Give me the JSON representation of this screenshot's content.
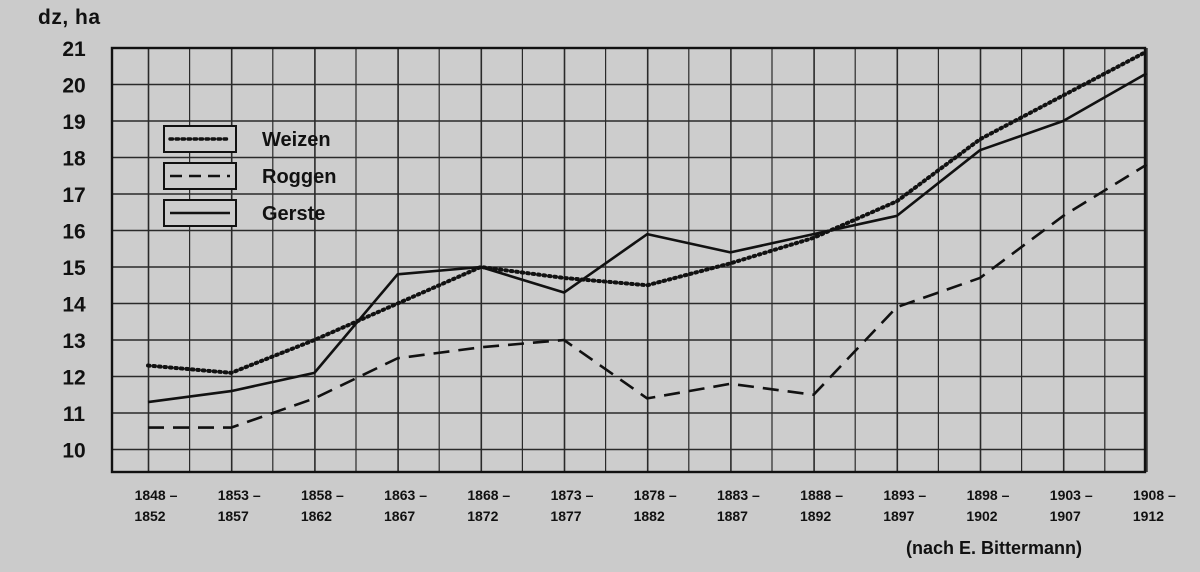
{
  "chart_data": {
    "type": "line",
    "y_unit_label": "dz, ha",
    "x": [
      "1848 – 1852",
      "1853 – 1857",
      "1858 – 1862",
      "1863 – 1867",
      "1868 – 1872",
      "1873 – 1877",
      "1878 – 1882",
      "1883 – 1887",
      "1888 – 1892",
      "1893 – 1897",
      "1898 – 1902",
      "1903 – 1907",
      "1908 – 1912"
    ],
    "x_ticks": [
      {
        "start": "1848 –",
        "end": "1852"
      },
      {
        "start": "1853 –",
        "end": "1857"
      },
      {
        "start": "1858 –",
        "end": "1862"
      },
      {
        "start": "1863 –",
        "end": "1867"
      },
      {
        "start": "1868 –",
        "end": "1872"
      },
      {
        "start": "1873 –",
        "end": "1877"
      },
      {
        "start": "1878 –",
        "end": "1882"
      },
      {
        "start": "1883 –",
        "end": "1887"
      },
      {
        "start": "1888 –",
        "end": "1892"
      },
      {
        "start": "1893 –",
        "end": "1897"
      },
      {
        "start": "1898 –",
        "end": "1902"
      },
      {
        "start": "1903 –",
        "end": "1907"
      },
      {
        "start": "1908 –",
        "end": "1912"
      }
    ],
    "y_ticks": [
      10,
      11,
      12,
      13,
      14,
      15,
      16,
      17,
      18,
      19,
      20,
      21
    ],
    "ylim": [
      9.3,
      21
    ],
    "grid": true,
    "legend_position": "top-left",
    "series": [
      {
        "name": "Weizen",
        "style": "dotted",
        "values": [
          12.3,
          12.1,
          13.0,
          14.0,
          15.0,
          14.7,
          14.5,
          15.1,
          15.8,
          16.8,
          18.5,
          19.7,
          20.9
        ]
      },
      {
        "name": "Roggen",
        "style": "dashed",
        "values": [
          10.6,
          10.6,
          11.4,
          12.5,
          12.8,
          13.0,
          11.4,
          11.8,
          11.5,
          13.9,
          14.7,
          16.4,
          17.8
        ]
      },
      {
        "name": "Gerste",
        "style": "solid",
        "values": [
          11.3,
          11.6,
          12.1,
          14.8,
          15.0,
          14.3,
          15.9,
          15.4,
          15.9,
          16.4,
          18.2,
          19.0,
          20.3
        ]
      }
    ]
  },
  "source_note": "(nach E. Bittermann)"
}
